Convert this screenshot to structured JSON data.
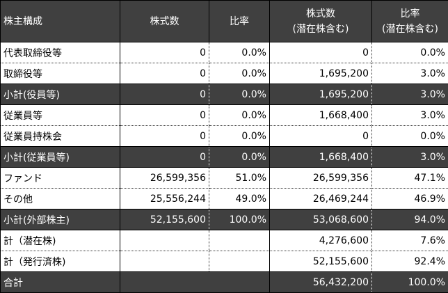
{
  "header": {
    "col0": "株主構成",
    "col1": "株式数",
    "col2": "比率",
    "col3_line1": "株式数",
    "col3_line2": "(潜在株含む)",
    "col4_line1": "比率",
    "col4_line2": "(潜在株含む)"
  },
  "rows": [
    {
      "label": "代表取締役等",
      "shares": "0",
      "ratio": "0.0%",
      "shares_diluted": "0",
      "ratio_diluted": "0.0%",
      "dark": false
    },
    {
      "label": "取締役等",
      "shares": "0",
      "ratio": "0.0%",
      "shares_diluted": "1,695,200",
      "ratio_diluted": "3.0%",
      "dark": false
    },
    {
      "label": "小計(役員等)",
      "shares": "0",
      "ratio": "0.0%",
      "shares_diluted": "1,695,200",
      "ratio_diluted": "3.0%",
      "dark": true
    },
    {
      "label": "従業員等",
      "shares": "0",
      "ratio": "0.0%",
      "shares_diluted": "1,668,400",
      "ratio_diluted": "3.0%",
      "dark": false
    },
    {
      "label": "従業員持株会",
      "shares": "0",
      "ratio": "0.0%",
      "shares_diluted": "0",
      "ratio_diluted": "0.0%",
      "dark": false
    },
    {
      "label": "小計(従業員等)",
      "shares": "0",
      "ratio": "0.0%",
      "shares_diluted": "1,668,400",
      "ratio_diluted": "3.0%",
      "dark": true
    },
    {
      "label": "ファンド",
      "shares": "26,599,356",
      "ratio": "51.0%",
      "shares_diluted": "26,599,356",
      "ratio_diluted": "47.1%",
      "dark": false
    },
    {
      "label": "その他",
      "shares": "25,556,244",
      "ratio": "49.0%",
      "shares_diluted": "26,469,244",
      "ratio_diluted": "46.9%",
      "dark": false
    },
    {
      "label": "小計(外部株主)",
      "shares": "52,155,600",
      "ratio": "100.0%",
      "shares_diluted": "53,068,600",
      "ratio_diluted": "94.0%",
      "dark": true
    },
    {
      "label": "計（潜在株)",
      "shares": "",
      "ratio": "",
      "shares_diluted": "4,276,600",
      "ratio_diluted": "7.6%",
      "dark": false
    },
    {
      "label": "計（発行済株)",
      "shares": "",
      "ratio": "",
      "shares_diluted": "52,155,600",
      "ratio_diluted": "92.4%",
      "dark": false
    }
  ],
  "total": {
    "label": "合計",
    "shares_diluted": "56,432,200",
    "ratio_diluted": "100.0%"
  },
  "colors": {
    "dark_row": "#404040",
    "text_on_dark": "#ffffff"
  }
}
